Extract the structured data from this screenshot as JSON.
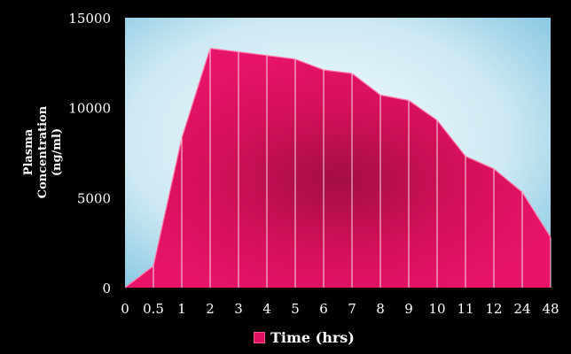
{
  "chart_data": {
    "type": "area",
    "categories": [
      "0",
      "0.5",
      "1",
      "2",
      "3",
      "4",
      "5",
      "6",
      "7",
      "8",
      "9",
      "10",
      "11",
      "12",
      "24",
      "48"
    ],
    "values": [
      0,
      1200,
      8300,
      13300,
      13100,
      12900,
      12700,
      12100,
      11900,
      10700,
      10400,
      9300,
      7300,
      6600,
      5300,
      2800
    ],
    "ylim": [
      0,
      15000
    ],
    "yticks": [
      "0",
      "5000",
      "10000",
      "15000"
    ],
    "ylabel_lines": [
      "Plasma",
      "Concentration",
      "(ng/ml)"
    ],
    "legend": "Time (hrs)",
    "colors": {
      "background": "#000000",
      "plot_light": "#f2fbfd",
      "plot_dark": "#7ec3e0",
      "fill": "#e0115f",
      "fill_dark": "#a30d45",
      "outline": "#ffffff"
    },
    "grid": false
  }
}
